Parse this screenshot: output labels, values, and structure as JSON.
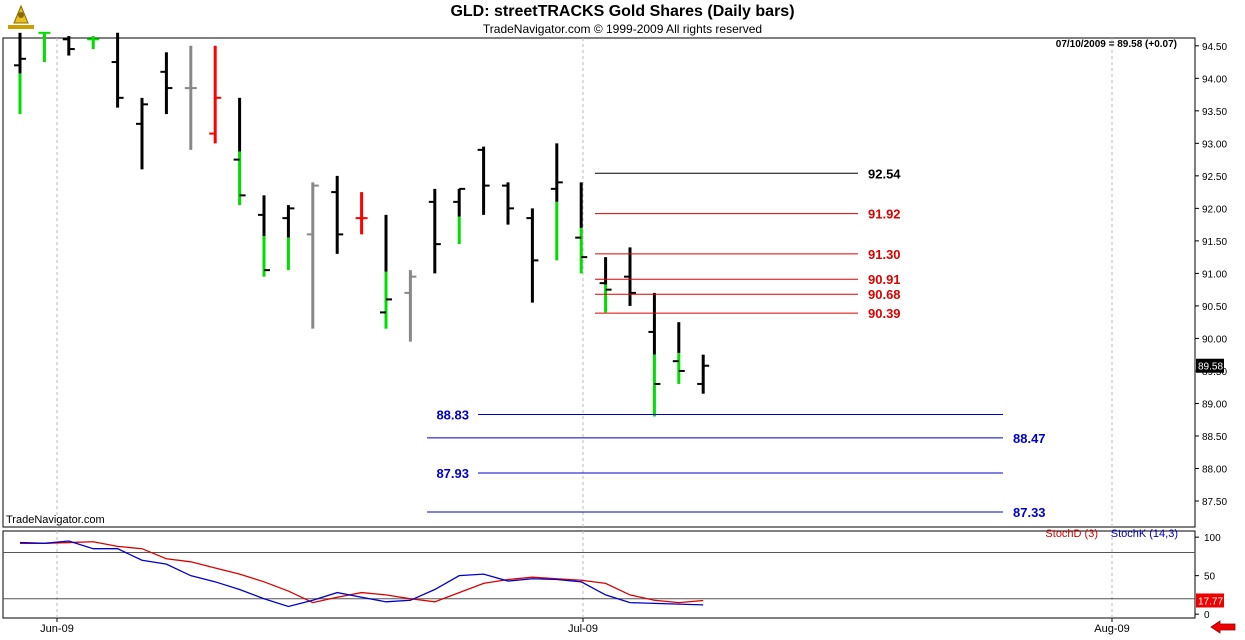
{
  "header": {
    "title": "GLD:  streetTRACKS Gold Shares  (Daily bars)",
    "subtitle": "TradeNavigator.com © 1999-2009 All rights reserved",
    "last_quote": "07/10/2009 = 89.58 (+0.07)",
    "watermark": "TradeNavigator.com"
  },
  "colors": {
    "up": "#00dd00",
    "down": "#ff0000",
    "neutral": "#000000",
    "gray": "#888888",
    "blue": "#0000cc",
    "red": "#dd0000"
  },
  "chart_data": [
    {
      "type": "bar",
      "subtype": "ohlc",
      "ylim": [
        87.1,
        94.62
      ],
      "y_ticks": [
        "94.50",
        "94.00",
        "93.50",
        "93.00",
        "92.50",
        "92.00",
        "91.50",
        "91.00",
        "90.50",
        "90.00",
        "89.50",
        "89.00",
        "88.50",
        "88.00",
        "87.50"
      ],
      "x_ticks": [
        "Jun-09",
        "Jul-09",
        "Aug-09"
      ],
      "last_price_label": "89.58",
      "bars": [
        {
          "o": 94.2,
          "h": 94.7,
          "l": 93.45,
          "c": 94.3,
          "color": "mix"
        },
        {
          "o": 94.7,
          "h": 94.7,
          "l": 94.25,
          "c": 94.7,
          "color": "up"
        },
        {
          "o": 94.6,
          "h": 94.65,
          "l": 94.35,
          "c": 94.45,
          "color": "neutral"
        },
        {
          "o": 94.6,
          "h": 94.65,
          "l": 94.45,
          "c": 94.6,
          "color": "up"
        },
        {
          "o": 94.25,
          "h": 94.7,
          "l": 93.55,
          "c": 93.7,
          "color": "neutral"
        },
        {
          "o": 93.3,
          "h": 93.7,
          "l": 92.6,
          "c": 93.6,
          "color": "neutral"
        },
        {
          "o": 94.1,
          "h": 94.4,
          "l": 93.45,
          "c": 93.85,
          "color": "neutral"
        },
        {
          "o": 93.85,
          "h": 94.5,
          "l": 92.9,
          "c": 93.85,
          "color": "gray"
        },
        {
          "o": 93.15,
          "h": 94.5,
          "l": 93.0,
          "c": 93.7,
          "color": "down"
        },
        {
          "o": 92.75,
          "h": 93.7,
          "l": 92.05,
          "c": 92.2,
          "color": "mix"
        },
        {
          "o": 91.9,
          "h": 92.2,
          "l": 90.95,
          "c": 91.05,
          "color": "mix"
        },
        {
          "o": 91.85,
          "h": 92.05,
          "l": 91.05,
          "c": 92.0,
          "color": "mix"
        },
        {
          "o": 91.6,
          "h": 92.4,
          "l": 90.15,
          "c": 92.35,
          "color": "gray"
        },
        {
          "o": 92.25,
          "h": 92.5,
          "l": 91.3,
          "c": 91.6,
          "color": "neutral"
        },
        {
          "o": 91.85,
          "h": 92.25,
          "l": 91.6,
          "c": 91.85,
          "color": "down"
        },
        {
          "o": 90.4,
          "h": 91.9,
          "l": 90.15,
          "c": 90.6,
          "color": "mix"
        },
        {
          "o": 90.7,
          "h": 91.05,
          "l": 89.95,
          "c": 90.95,
          "color": "gray"
        },
        {
          "o": 92.1,
          "h": 92.3,
          "l": 91.0,
          "c": 91.45,
          "color": "neutral"
        },
        {
          "o": 92.1,
          "h": 92.3,
          "l": 91.45,
          "c": 92.3,
          "color": "mix"
        },
        {
          "o": 92.9,
          "h": 92.95,
          "l": 91.9,
          "c": 92.35,
          "color": "neutral"
        },
        {
          "o": 92.35,
          "h": 92.4,
          "l": 91.75,
          "c": 92.0,
          "color": "neutral"
        },
        {
          "o": 91.85,
          "h": 92.0,
          "l": 90.55,
          "c": 91.2,
          "color": "neutral"
        },
        {
          "o": 92.3,
          "h": 93.0,
          "l": 91.2,
          "c": 92.4,
          "color": "mix"
        },
        {
          "o": 91.55,
          "h": 92.4,
          "l": 91.0,
          "c": 91.25,
          "color": "mix"
        },
        {
          "o": 90.85,
          "h": 91.25,
          "l": 90.4,
          "c": 90.75,
          "color": "mix"
        },
        {
          "o": 90.95,
          "h": 91.4,
          "l": 90.5,
          "c": 90.7,
          "color": "neutral"
        },
        {
          "o": 90.1,
          "h": 90.7,
          "l": 88.8,
          "c": 89.3,
          "color": "mix"
        },
        {
          "o": 89.65,
          "h": 90.25,
          "l": 89.3,
          "c": 89.5,
          "color": "mix"
        },
        {
          "o": 89.3,
          "h": 89.75,
          "l": 89.15,
          "c": 89.58,
          "color": "neutral"
        }
      ],
      "levels": [
        {
          "label": "92.54",
          "value": 92.54,
          "color": "black"
        },
        {
          "label": "91.92",
          "value": 91.92,
          "color": "red"
        },
        {
          "label": "91.30",
          "value": 91.3,
          "color": "red"
        },
        {
          "label": "90.91",
          "value": 90.91,
          "color": "red"
        },
        {
          "label": "90.68",
          "value": 90.68,
          "color": "red"
        },
        {
          "label": "90.39",
          "value": 90.39,
          "color": "red"
        },
        {
          "label": "88.83",
          "value": 88.83,
          "color": "blue"
        },
        {
          "label": "88.47",
          "value": 88.47,
          "color": "blue"
        },
        {
          "label": "87.93",
          "value": 87.93,
          "color": "blue"
        },
        {
          "label": "87.33",
          "value": 87.33,
          "color": "blue"
        }
      ]
    },
    {
      "type": "line",
      "ylim": [
        -5,
        108
      ],
      "y_ticks": [
        "100",
        "50",
        "0"
      ],
      "hlines": [
        80,
        20
      ],
      "last_value_label": "17.77",
      "series": [
        {
          "name": "StochD (3)",
          "color": "#dd0000",
          "values": [
            92,
            92,
            93,
            94,
            88,
            85,
            72,
            68,
            60,
            52,
            42,
            30,
            15,
            22,
            28,
            25,
            20,
            16,
            28,
            40,
            45,
            48,
            46,
            44,
            40,
            25,
            18,
            15,
            17.77
          ]
        },
        {
          "name": "StochK (14,3)",
          "color": "#0000cc",
          "values": [
            93,
            92,
            95,
            85,
            85,
            70,
            65,
            50,
            42,
            32,
            20,
            10,
            18,
            28,
            22,
            16,
            18,
            32,
            50,
            52,
            43,
            46,
            45,
            42,
            25,
            15,
            14,
            13,
            12
          ]
        }
      ]
    }
  ]
}
